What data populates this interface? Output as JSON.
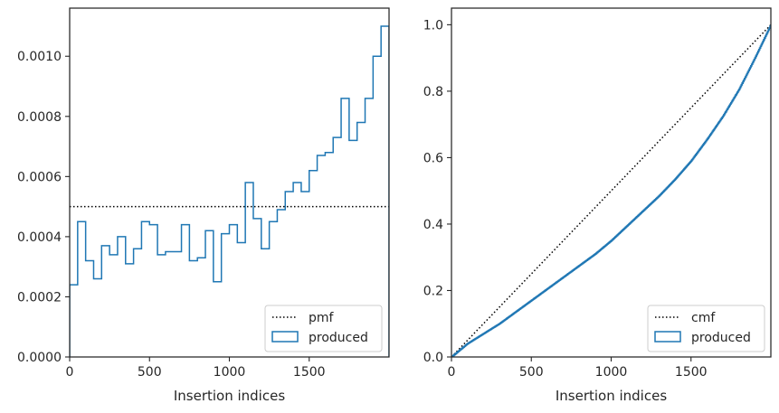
{
  "chart_data": [
    {
      "type": "line",
      "subtype": "step-histogram",
      "title": "",
      "xlabel": "Insertion indices",
      "ylabel": "",
      "xlim": [
        0,
        2000
      ],
      "ylim": [
        0,
        0.00116
      ],
      "xticks": [
        0,
        500,
        1000,
        1500
      ],
      "xtick_labels": [
        "0",
        "500",
        "1000",
        "1500"
      ],
      "yticks": [
        0,
        0.0002,
        0.0004,
        0.0006,
        0.0008,
        0.001
      ],
      "ytick_labels": [
        "0.0000",
        "0.0002",
        "0.0004",
        "0.0006",
        "0.0008",
        "0.0010"
      ],
      "grid": false,
      "legend_position": "lower-right",
      "series": [
        {
          "name": "pmf",
          "style": "dotted",
          "color": "#000000",
          "x": [
            0,
            2000
          ],
          "y": [
            0.0005,
            0.0005
          ]
        },
        {
          "name": "produced",
          "style": "step",
          "color": "#1f77b4",
          "bin_edges": [
            0,
            50,
            100,
            150,
            200,
            250,
            300,
            350,
            400,
            450,
            500,
            550,
            600,
            650,
            700,
            750,
            800,
            850,
            900,
            950,
            1000,
            1050,
            1100,
            1150,
            1200,
            1250,
            1300,
            1350,
            1400,
            1450,
            1500,
            1550,
            1600,
            1650,
            1700,
            1750,
            1800,
            1850,
            1900,
            1950,
            2000
          ],
          "values": [
            0.00024,
            0.00045,
            0.00032,
            0.00026,
            0.00037,
            0.00034,
            0.0004,
            0.00031,
            0.00036,
            0.00045,
            0.00044,
            0.00034,
            0.00035,
            0.00035,
            0.00044,
            0.00032,
            0.00033,
            0.00042,
            0.00025,
            0.00041,
            0.00044,
            0.00038,
            0.00058,
            0.00046,
            0.00036,
            0.00045,
            0.00049,
            0.00055,
            0.00058,
            0.00055,
            0.00062,
            0.00067,
            0.00068,
            0.00073,
            0.00086,
            0.00072,
            0.00078,
            0.00086,
            0.001,
            0.0011
          ]
        }
      ]
    },
    {
      "type": "line",
      "subtype": "cumulative",
      "title": "",
      "xlabel": "Insertion indices",
      "ylabel": "",
      "xlim": [
        0,
        2000
      ],
      "ylim": [
        0,
        1.05
      ],
      "xticks": [
        0,
        500,
        1000,
        1500
      ],
      "xtick_labels": [
        "0",
        "500",
        "1000",
        "1500"
      ],
      "yticks": [
        0,
        0.2,
        0.4,
        0.6,
        0.8,
        1.0
      ],
      "ytick_labels": [
        "0.0",
        "0.2",
        "0.4",
        "0.6",
        "0.8",
        "1.0"
      ],
      "grid": false,
      "legend_position": "lower-right",
      "series": [
        {
          "name": "cmf",
          "style": "dotted",
          "color": "#000000",
          "x": [
            0,
            2000
          ],
          "y": [
            0,
            1.0
          ]
        },
        {
          "name": "produced",
          "style": "line",
          "color": "#1f77b4",
          "x": [
            0,
            100,
            200,
            300,
            400,
            500,
            600,
            700,
            800,
            900,
            1000,
            1100,
            1200,
            1300,
            1400,
            1500,
            1600,
            1700,
            1800,
            1900,
            2000
          ],
          "y": [
            0,
            0.04,
            0.07,
            0.1,
            0.135,
            0.17,
            0.205,
            0.24,
            0.275,
            0.31,
            0.35,
            0.395,
            0.44,
            0.485,
            0.535,
            0.59,
            0.655,
            0.725,
            0.805,
            0.9,
            1.0
          ]
        }
      ]
    }
  ]
}
